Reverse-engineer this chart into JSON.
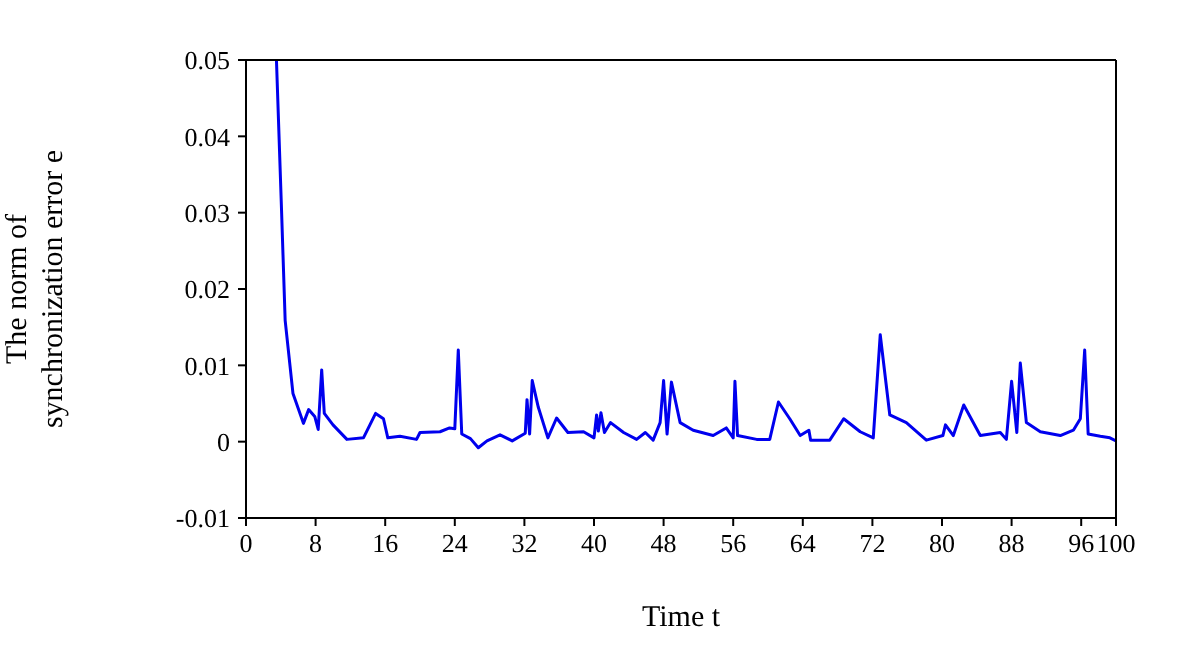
{
  "chart_data": {
    "type": "line",
    "xlabel": "Time t",
    "ylabel": "The norm of synchronization error e",
    "xlim": [
      0,
      100
    ],
    "xticks": [
      0,
      8,
      16,
      24,
      32,
      40,
      48,
      56,
      64,
      72,
      80,
      88,
      96,
      100
    ],
    "ylim": [
      -0.01,
      0.05
    ],
    "yticks": [
      -0.01,
      0,
      0.01,
      0.02,
      0.03,
      0.04,
      0.05
    ],
    "grid": false,
    "legend": false,
    "marker": "none",
    "line_style": "solid",
    "series": [
      {
        "color": "#0000ee",
        "x": [
          3.5,
          4.1,
          4.5,
          5.4,
          6.6,
          7.2,
          7.9,
          8.3,
          8.7,
          9.0,
          10.0,
          11.6,
          13.5,
          14.9,
          15.8,
          16.3,
          17.7,
          19.6,
          20,
          22.3,
          23.4,
          24,
          24.4,
          24.8,
          25.8,
          26.7,
          27.7,
          29.2,
          30.6,
          32.1,
          32.3,
          32.6,
          32.9,
          33.6,
          34.7,
          35.7,
          37,
          38.8,
          40,
          40.3,
          40.5,
          40.8,
          41.2,
          41.9,
          43.4,
          44.9,
          45.9,
          46.8,
          47.6,
          48.0,
          48.4,
          48.9,
          49.9,
          51.4,
          53.7,
          55.2,
          56,
          56.2,
          56.5,
          58.7,
          60.2,
          61.2,
          62.5,
          63.7,
          64.7,
          64.9,
          67.1,
          68.7,
          70.6,
          72.1,
          72.9,
          74,
          75.9,
          78.2,
          80.1,
          80.4,
          81.3,
          82.5,
          84.4,
          86.7,
          87.4,
          88,
          88.6,
          89,
          89.7,
          91.3,
          93.6,
          95.1,
          95.9,
          96.4,
          96.8,
          98.2,
          99.3,
          100
        ],
        "values": [
          0.05,
          0.0298,
          0.0159,
          0.0063,
          0.0024,
          0.0042,
          0.0033,
          0.0016,
          0.0094,
          0.0037,
          0.0022,
          0.0003,
          0.0005,
          0.0037,
          0.003,
          0.0005,
          0.0007,
          0.0003,
          0.0012,
          0.0013,
          0.0018,
          0.0017,
          0.012,
          0.001,
          0.0004,
          -0.0008,
          0.0001,
          0.0009,
          0.0001,
          0.0011,
          0.0055,
          0.001,
          0.008,
          0.0045,
          0.0005,
          0.0031,
          0.0012,
          0.0013,
          0.0005,
          0.0035,
          0.0014,
          0.0038,
          0.0012,
          0.0025,
          0.0012,
          0.0003,
          0.0012,
          0.0002,
          0.0025,
          0.008,
          0.001,
          0.0078,
          0.0025,
          0.0015,
          0.0008,
          0.0018,
          0.0005,
          0.0079,
          0.0008,
          0.0003,
          0.0003,
          0.0052,
          0.003,
          0.0008,
          0.0015,
          0.0002,
          0.0002,
          0.003,
          0.0013,
          0.0005,
          0.014,
          0.0035,
          0.0025,
          0.0002,
          0.0008,
          0.0022,
          0.0008,
          0.0048,
          0.0008,
          0.0012,
          0.0003,
          0.0079,
          0.0012,
          0.0103,
          0.0025,
          0.0013,
          0.0008,
          0.0015,
          0.003,
          0.012,
          0.001,
          0.0007,
          0.0005,
          0.0001
        ]
      }
    ]
  }
}
